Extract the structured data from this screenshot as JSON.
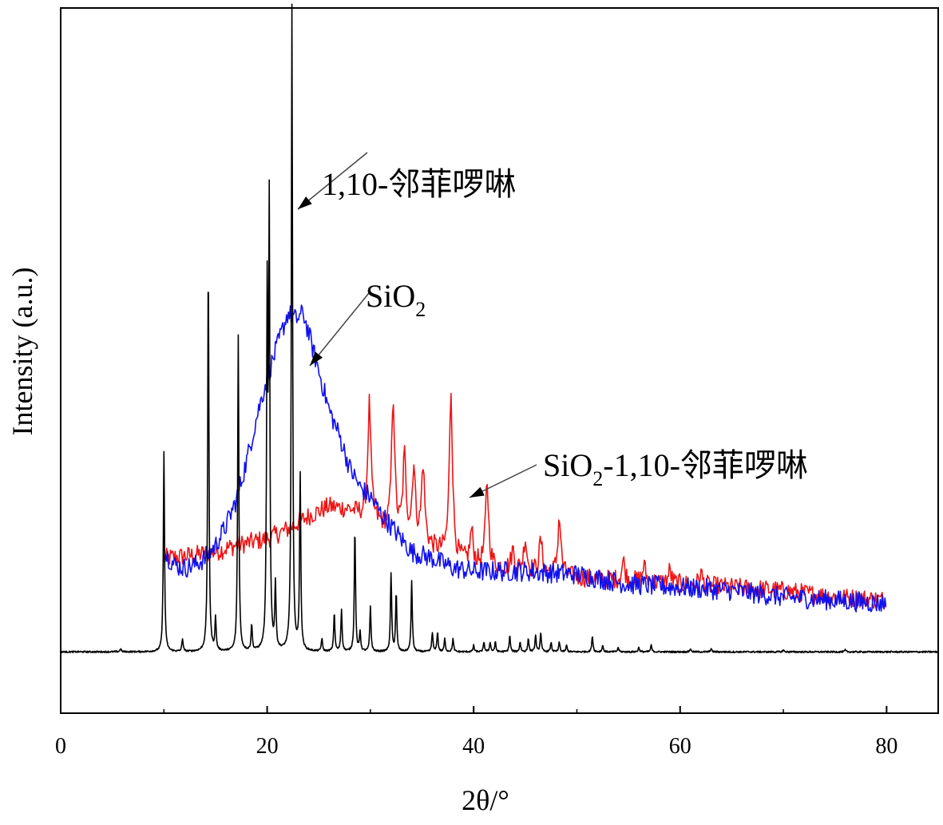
{
  "chart_data": {
    "type": "line",
    "title": "",
    "xlabel": "2θ/°",
    "ylabel": "Intensity (a.u.)",
    "xlim": [
      0,
      85
    ],
    "ylim": [
      0,
      100
    ],
    "x_ticks": [
      0,
      20,
      40,
      60,
      80
    ],
    "x_tick_labels": [
      "0",
      "20",
      "40",
      "60",
      "80"
    ],
    "grid": false,
    "annotations": [
      {
        "text": "1,10-邻菲啰啉",
        "target_series": "1,10-邻菲啰啉"
      },
      {
        "text": "SiO",
        "subscript": "2",
        "target_series": "SiO2"
      },
      {
        "text": "SiO",
        "subscript": "2",
        "suffix": "-1,10-邻菲啰啉",
        "target_series": "SiO2-1,10-邻菲啰啉"
      }
    ],
    "series": [
      {
        "name": "1,10-邻菲啰啉",
        "color": "#000000",
        "x_range": [
          0,
          85
        ],
        "baseline": 9.5,
        "peaks": [
          {
            "x": 5.8,
            "y": 0.5
          },
          {
            "x": 10.0,
            "y": 31
          },
          {
            "x": 11.8,
            "y": 2
          },
          {
            "x": 14.3,
            "y": 60
          },
          {
            "x": 15.0,
            "y": 5
          },
          {
            "x": 17.2,
            "y": 49
          },
          {
            "x": 18.5,
            "y": 4
          },
          {
            "x": 20.0,
            "y": 53
          },
          {
            "x": 20.2,
            "y": 67
          },
          {
            "x": 20.8,
            "y": 10
          },
          {
            "x": 22.4,
            "y": 100
          },
          {
            "x": 23.2,
            "y": 27
          },
          {
            "x": 25.3,
            "y": 2
          },
          {
            "x": 26.5,
            "y": 6
          },
          {
            "x": 27.2,
            "y": 6.5
          },
          {
            "x": 28.5,
            "y": 19
          },
          {
            "x": 29.0,
            "y": 3
          },
          {
            "x": 30.0,
            "y": 7
          },
          {
            "x": 32.0,
            "y": 12
          },
          {
            "x": 32.5,
            "y": 9
          },
          {
            "x": 34.0,
            "y": 11
          },
          {
            "x": 36.0,
            "y": 3
          },
          {
            "x": 36.5,
            "y": 3
          },
          {
            "x": 37.2,
            "y": 2
          },
          {
            "x": 38.0,
            "y": 2
          },
          {
            "x": 40.0,
            "y": 1
          },
          {
            "x": 41.0,
            "y": 1.5
          },
          {
            "x": 41.6,
            "y": 1.5
          },
          {
            "x": 42.1,
            "y": 1.5
          },
          {
            "x": 43.5,
            "y": 2.5
          },
          {
            "x": 44.5,
            "y": 1.5
          },
          {
            "x": 45.3,
            "y": 2
          },
          {
            "x": 46.0,
            "y": 2.5
          },
          {
            "x": 46.5,
            "y": 3
          },
          {
            "x": 47.5,
            "y": 1.5
          },
          {
            "x": 48.3,
            "y": 1.5
          },
          {
            "x": 49.0,
            "y": 1
          },
          {
            "x": 51.5,
            "y": 2.5
          },
          {
            "x": 52.5,
            "y": 1
          },
          {
            "x": 54.0,
            "y": 0.7
          },
          {
            "x": 56.0,
            "y": 0.7
          },
          {
            "x": 57.2,
            "y": 1
          },
          {
            "x": 61.0,
            "y": 0.5
          },
          {
            "x": 63.0,
            "y": 0.5
          },
          {
            "x": 70.0,
            "y": 0.3
          },
          {
            "x": 76.0,
            "y": 0.3
          }
        ]
      },
      {
        "name": "SiO2",
        "color": "#1010ee",
        "x_range": [
          10,
          80
        ],
        "control_points": [
          [
            10,
            25
          ],
          [
            11,
            23
          ],
          [
            12,
            22.5
          ],
          [
            13,
            23
          ],
          [
            14,
            24
          ],
          [
            15,
            26
          ],
          [
            16,
            29
          ],
          [
            17,
            33
          ],
          [
            18,
            39
          ],
          [
            19,
            46
          ],
          [
            20,
            52
          ],
          [
            21,
            57
          ],
          [
            22,
            62
          ],
          [
            22.8,
            61
          ],
          [
            23.5,
            62
          ],
          [
            24,
            59
          ],
          [
            25,
            53
          ],
          [
            26,
            47
          ],
          [
            27,
            43
          ],
          [
            28,
            38
          ],
          [
            29,
            35
          ],
          [
            30,
            33.5
          ],
          [
            31,
            31
          ],
          [
            32,
            29
          ],
          [
            33,
            27
          ],
          [
            34,
            25
          ],
          [
            36,
            24
          ],
          [
            38,
            22.5
          ],
          [
            40,
            22
          ],
          [
            45,
            22
          ],
          [
            50,
            21.5
          ],
          [
            55,
            20
          ],
          [
            60,
            19.5
          ],
          [
            65,
            19
          ],
          [
            70,
            18
          ],
          [
            75,
            17.5
          ],
          [
            80,
            17
          ]
        ]
      },
      {
        "name": "SiO2-1,10-邻菲啰啉",
        "color": "#ee1515",
        "x_range": [
          10,
          80
        ],
        "control_points": [
          [
            10,
            24
          ],
          [
            13,
            24.5
          ],
          [
            15,
            25
          ],
          [
            17,
            26
          ],
          [
            20,
            27
          ],
          [
            22,
            28.5
          ],
          [
            24,
            30.5
          ],
          [
            26,
            32
          ],
          [
            28,
            31.5
          ],
          [
            30,
            30
          ],
          [
            32,
            28
          ],
          [
            34,
            27
          ],
          [
            36,
            25.5
          ],
          [
            38,
            24
          ],
          [
            40,
            23
          ],
          [
            45,
            22
          ],
          [
            50,
            21
          ],
          [
            55,
            20.5
          ],
          [
            60,
            20
          ],
          [
            65,
            19.5
          ],
          [
            70,
            19
          ],
          [
            75,
            18
          ],
          [
            80,
            17.5
          ]
        ],
        "peaks": [
          {
            "x": 29.9,
            "y": 18
          },
          {
            "x": 32.2,
            "y": 21
          },
          {
            "x": 33.3,
            "y": 12
          },
          {
            "x": 34.2,
            "y": 11
          },
          {
            "x": 35.1,
            "y": 12
          },
          {
            "x": 37.8,
            "y": 26
          },
          {
            "x": 39.8,
            "y": 5
          },
          {
            "x": 41.3,
            "y": 13
          },
          {
            "x": 43.8,
            "y": 3
          },
          {
            "x": 45.0,
            "y": 5
          },
          {
            "x": 46.5,
            "y": 5
          },
          {
            "x": 48.3,
            "y": 9
          },
          {
            "x": 54.5,
            "y": 3
          },
          {
            "x": 56.5,
            "y": 2.5
          },
          {
            "x": 59.0,
            "y": 2
          },
          {
            "x": 62.0,
            "y": 2
          }
        ]
      }
    ]
  }
}
